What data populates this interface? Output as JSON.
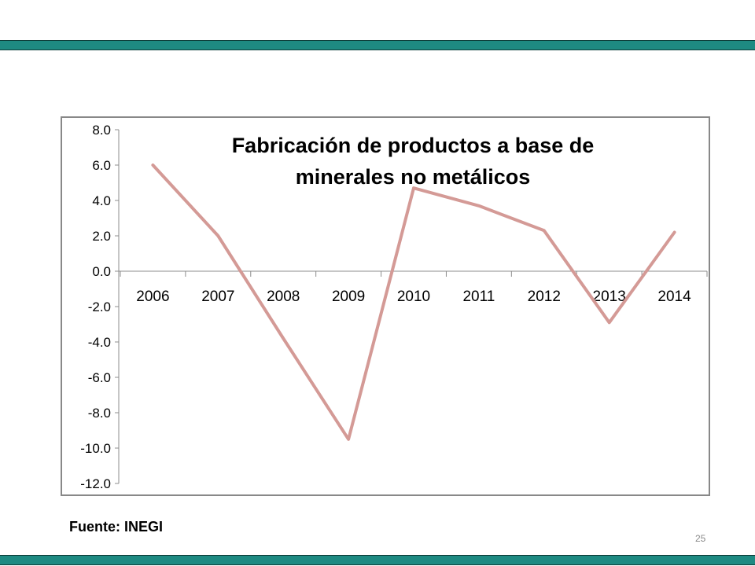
{
  "slide": {
    "source": "Fuente: INEGI",
    "page_number": "25",
    "band_color": "#1e8a82"
  },
  "chart_data": {
    "type": "line",
    "title_lines": [
      "Fabricación de productos a base de",
      "minerales no metálicos"
    ],
    "categories": [
      "2006",
      "2007",
      "2008",
      "2009",
      "2010",
      "2011",
      "2012",
      "2013",
      "2014"
    ],
    "series": [
      {
        "values": [
          6.0,
          2.0,
          -3.8,
          -9.5,
          4.7,
          3.7,
          2.3,
          -2.9,
          2.2
        ],
        "color": "#d49a96"
      }
    ],
    "ylim": [
      -12.0,
      8.0
    ],
    "yticks": [
      "8.0",
      "6.0",
      "4.0",
      "2.0",
      "0.0",
      "-2.0",
      "-4.0",
      "-6.0",
      "-8.0",
      "-10.0",
      "-12.0"
    ],
    "xlabel": "",
    "ylabel": "",
    "legend": "none",
    "grid": false
  }
}
